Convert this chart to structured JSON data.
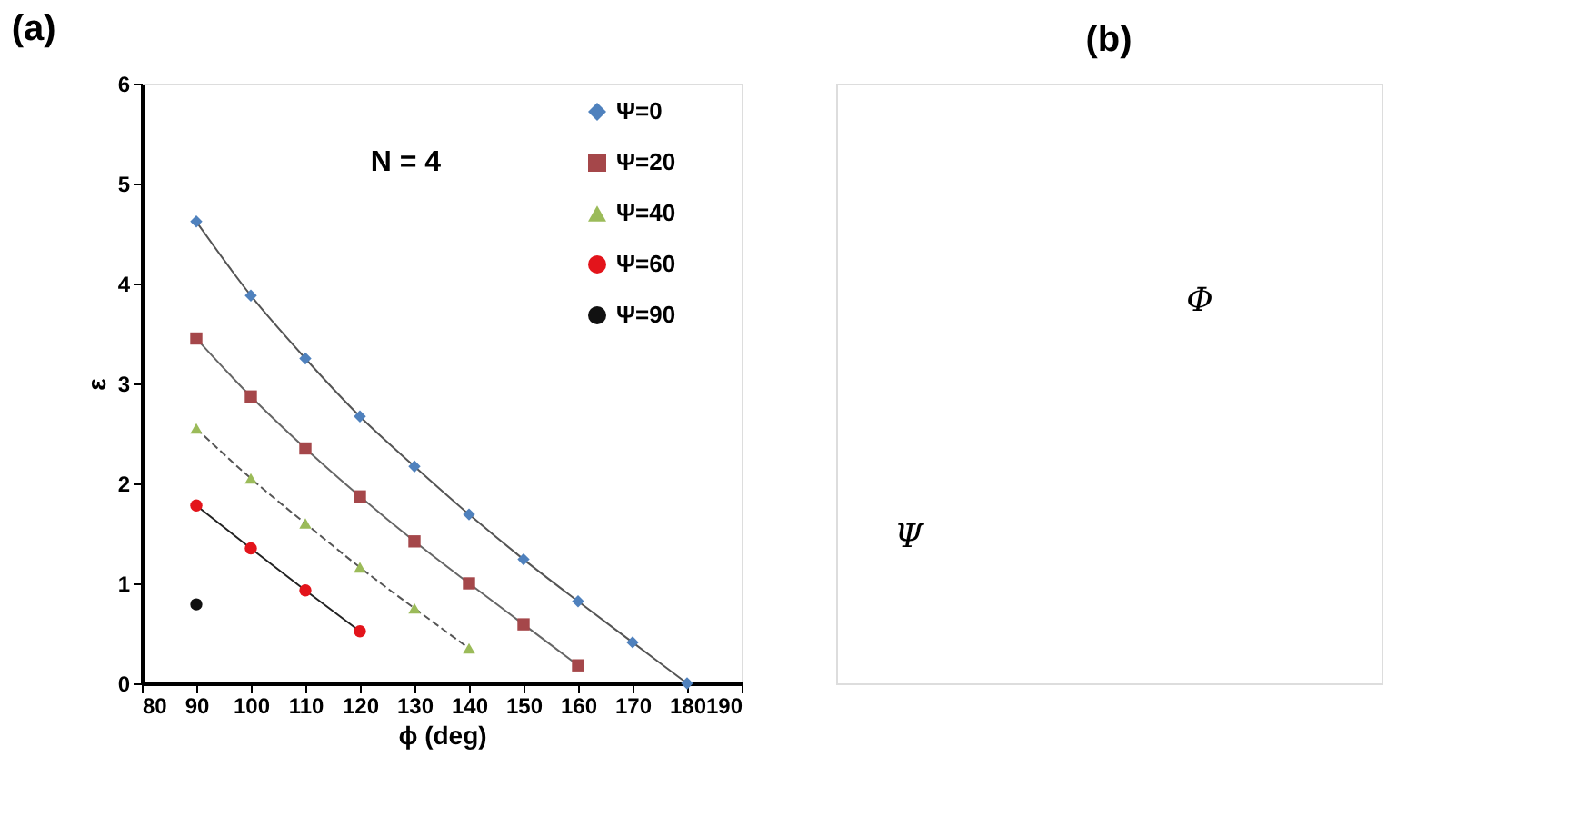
{
  "chart_data": [
    {
      "type": "scatter",
      "title": "(a)",
      "xlabel": "ϕ (deg)",
      "ylabel": "ε",
      "xlim": [
        80,
        190
      ],
      "xticks": [
        80,
        90,
        100,
        110,
        120,
        130,
        140,
        150,
        160,
        170,
        180,
        190
      ],
      "ylim": [
        0,
        6
      ],
      "yticks": [
        0,
        1,
        2,
        3,
        4,
        5,
        6
      ],
      "grid": false,
      "legend": "top right",
      "annotations": [
        "N = 4"
      ],
      "series": [
        {
          "name": "Ψ=0",
          "type": "scatter",
          "marker": "diamond",
          "color": "#4f81bd",
          "x": [
            90,
            100,
            110,
            120,
            130,
            140,
            150,
            160,
            170,
            180
          ],
          "values": [
            4.62,
            3.88,
            3.25,
            2.67,
            2.17,
            1.69,
            1.24,
            0.82,
            0.41,
            0
          ]
        },
        {
          "name": "Ψ=20",
          "type": "scatter",
          "marker": "square",
          "color": "#a5474a",
          "x": [
            90,
            100,
            110,
            120,
            130,
            140,
            150,
            160
          ],
          "values": [
            3.45,
            2.87,
            2.35,
            1.87,
            1.42,
            1.0,
            0.59,
            0.18
          ]
        },
        {
          "name": "Ψ=40",
          "type": "scatter",
          "marker": "triangle",
          "color": "#9bbb59",
          "x": [
            90,
            100,
            110,
            120,
            130,
            140
          ],
          "values": [
            2.55,
            2.05,
            1.6,
            1.16,
            0.75,
            0.35
          ]
        },
        {
          "name": "Ψ=60",
          "type": "scatter",
          "marker": "circle",
          "color": "#e3141b",
          "x": [
            90,
            100,
            110,
            120
          ],
          "values": [
            1.78,
            1.35,
            0.93,
            0.52
          ]
        },
        {
          "name": "Ψ=90",
          "type": "scatter",
          "marker": "circle",
          "color": "#111111",
          "x": [
            90
          ],
          "values": [
            0.79
          ]
        },
        {
          "type": "line",
          "line_style": "solid",
          "color": "#555555",
          "x": [
            90,
            100,
            110,
            120,
            130,
            140,
            150,
            160,
            170,
            180
          ],
          "values": [
            4.62,
            3.88,
            3.25,
            2.67,
            2.17,
            1.69,
            1.24,
            0.82,
            0.41,
            0
          ]
        },
        {
          "type": "line",
          "line_style": "solid",
          "color": "#666666",
          "x": [
            90,
            100,
            110,
            120,
            130,
            140,
            150,
            160
          ],
          "values": [
            3.45,
            2.87,
            2.35,
            1.87,
            1.42,
            1.0,
            0.59,
            0.18
          ]
        },
        {
          "type": "line",
          "line_style": "dashed",
          "color": "#555555",
          "x": [
            90,
            100,
            110,
            120,
            130,
            140
          ],
          "values": [
            2.55,
            2.05,
            1.6,
            1.16,
            0.75,
            0.35
          ]
        },
        {
          "type": "line",
          "line_style": "solid",
          "color": "#222222",
          "x": [
            90,
            100,
            110,
            120
          ],
          "values": [
            1.78,
            1.35,
            0.93,
            0.52
          ]
        }
      ]
    },
    {
      "type": "other",
      "title": "(b)",
      "annotations": [
        "Φ",
        "Ψ"
      ]
    }
  ]
}
